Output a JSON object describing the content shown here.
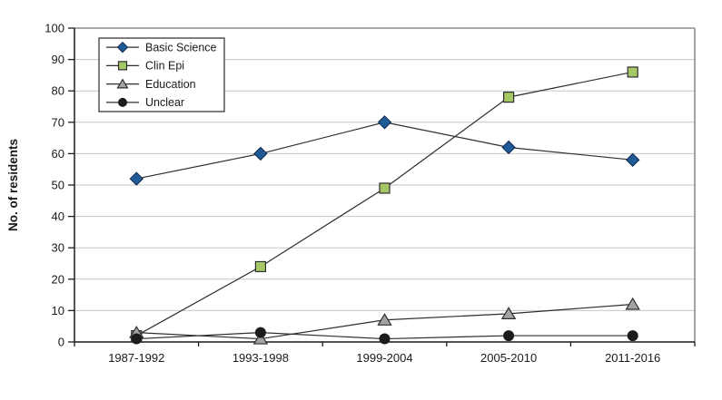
{
  "chart_data": {
    "type": "line",
    "title": "",
    "xlabel": "",
    "ylabel": "No. of residents",
    "categories": [
      "1987-1992",
      "1993-1998",
      "1999-2004",
      "2005-2010",
      "2011-2016"
    ],
    "yticks": [
      0,
      10,
      20,
      30,
      40,
      50,
      60,
      70,
      80,
      90,
      100
    ],
    "ylim": [
      0,
      100
    ],
    "grid": "horizontal",
    "legend_position": "top-left-inside",
    "series": [
      {
        "name": "Basic Science",
        "marker": "diamond",
        "fill": "#1f5b96",
        "edge": "#10264d",
        "values": [
          52,
          60,
          70,
          62,
          58
        ]
      },
      {
        "name": "Clin Epi",
        "marker": "square",
        "fill": "#a6c765",
        "edge": "#2e2e2e",
        "values": [
          2,
          24,
          49,
          78,
          86
        ]
      },
      {
        "name": "Education",
        "marker": "triangle",
        "fill": "#a3a3a3",
        "edge": "#2e2e2e",
        "values": [
          3,
          1,
          7,
          9,
          12
        ]
      },
      {
        "name": "Unclear",
        "marker": "circle",
        "fill": "#1c1c1c",
        "edge": "#1c1c1c",
        "values": [
          1,
          3,
          1,
          2,
          2
        ]
      }
    ],
    "colors": {
      "background": "#ffffff",
      "line": "#2e2e2e",
      "axis": "#1a1a1a",
      "grid": "#c6c6c6",
      "plot_border": "#8c8c8c",
      "legend_border": "#2a2a2a"
    }
  }
}
